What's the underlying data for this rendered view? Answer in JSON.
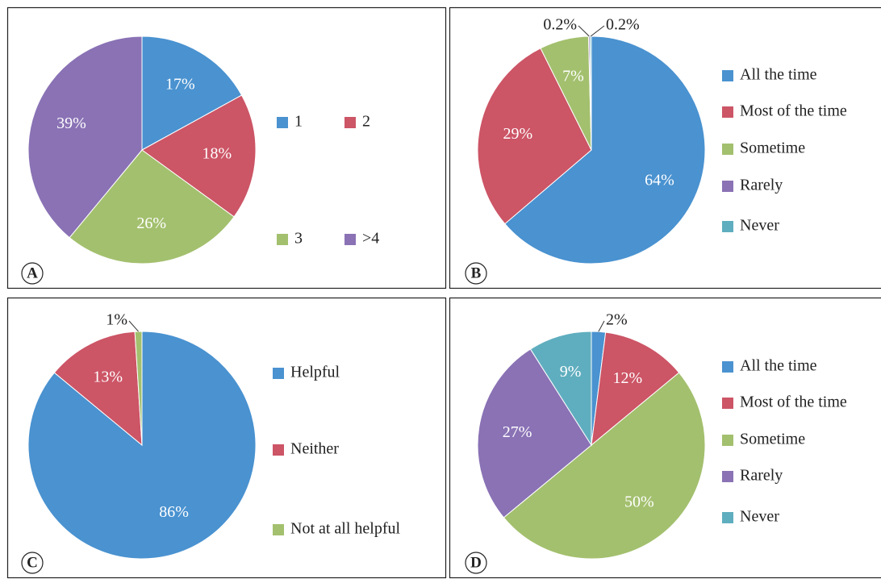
{
  "chart_data": [
    {
      "type": "pie",
      "label": "A",
      "categories": [
        "1",
        "2",
        "3",
        ">4"
      ],
      "values": [
        17,
        18,
        26,
        39
      ],
      "value_labels": [
        "17%",
        "18%",
        "26%",
        "39%"
      ],
      "colors": [
        "#4a92d0",
        "#cc5566",
        "#a3c06e",
        "#8a72b5"
      ]
    },
    {
      "type": "pie",
      "label": "B",
      "categories": [
        "All the time",
        "Most of the time",
        "Sometime",
        "Rarely",
        "Never"
      ],
      "values": [
        64,
        29,
        7,
        0.2,
        0.2
      ],
      "value_labels": [
        "64%",
        "29%",
        "7%",
        "0.2%",
        "0.2%"
      ],
      "colors": [
        "#4a92d0",
        "#cc5566",
        "#a3c06e",
        "#8a72b5",
        "#5faebf"
      ]
    },
    {
      "type": "pie",
      "label": "C",
      "categories": [
        "Helpful",
        "Neither",
        "Not at all helpful"
      ],
      "values": [
        86,
        13,
        1
      ],
      "value_labels": [
        "86%",
        "13%",
        "1%"
      ],
      "colors": [
        "#4a92d0",
        "#cc5566",
        "#a3c06e"
      ]
    },
    {
      "type": "pie",
      "label": "D",
      "categories": [
        "All the time",
        "Most of the time",
        "Sometime",
        "Rarely",
        "Never"
      ],
      "values": [
        2,
        12,
        50,
        27,
        9
      ],
      "value_labels": [
        "2%",
        "12%",
        "50%",
        "27%",
        "9%"
      ],
      "colors": [
        "#4a92d0",
        "#cc5566",
        "#a3c06e",
        "#8a72b5",
        "#5faebf"
      ]
    }
  ]
}
